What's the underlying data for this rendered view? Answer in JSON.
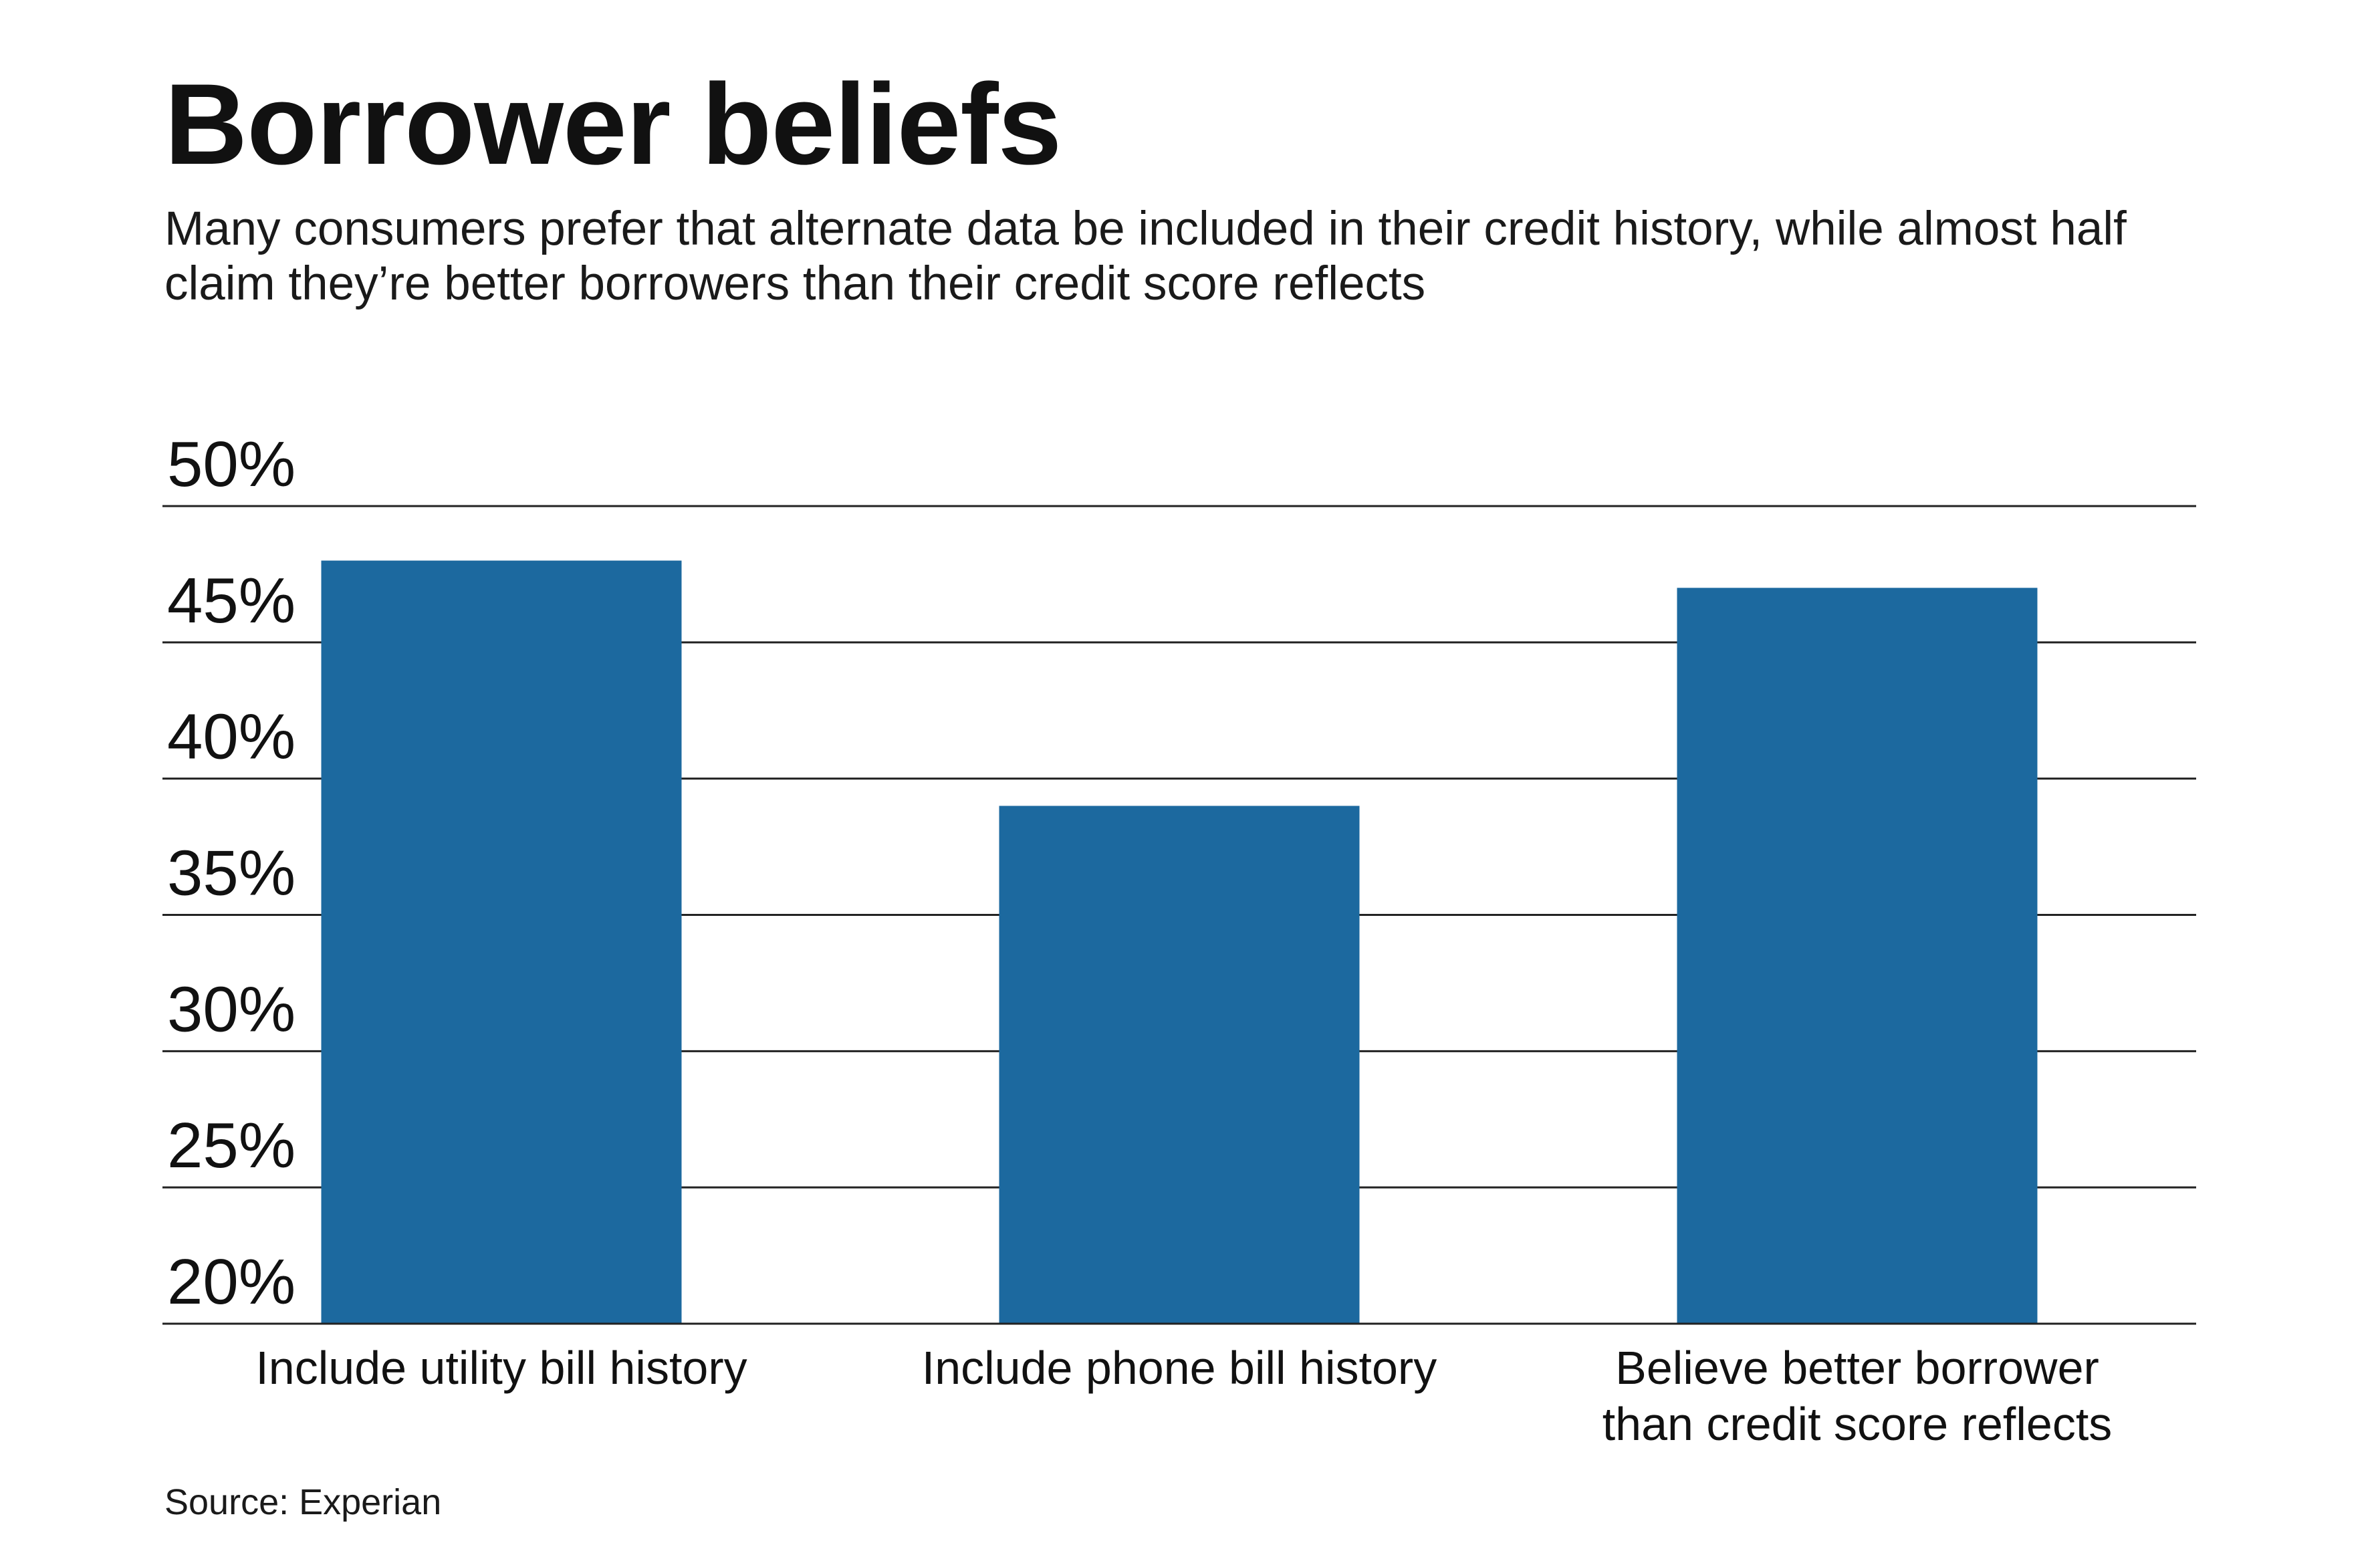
{
  "header": {
    "title": "Borrower beliefs",
    "subtitle": "Many consumers prefer that alternate data be included in their credit history, while almost half claim they’re better borrowers than their credit score reflects"
  },
  "footer": {
    "source": "Source: Experian"
  },
  "colors": {
    "bar": "#1c699f",
    "gridline": "#222222",
    "text": "#111111"
  },
  "chart_data": {
    "type": "bar",
    "title": "Borrower beliefs",
    "xlabel": "",
    "ylabel": "",
    "ylim": [
      20,
      50
    ],
    "y_ticks": [
      50,
      45,
      40,
      35,
      30,
      25,
      20
    ],
    "y_tick_labels": [
      "50%",
      "45%",
      "40%",
      "35%",
      "30%",
      "25%",
      "20%"
    ],
    "grid": true,
    "categories": [
      [
        "Include utility bill history"
      ],
      [
        "Include phone bill history"
      ],
      [
        "Believe better borrower",
        "than credit score reflects"
      ]
    ],
    "values": [
      48,
      39,
      47
    ]
  }
}
